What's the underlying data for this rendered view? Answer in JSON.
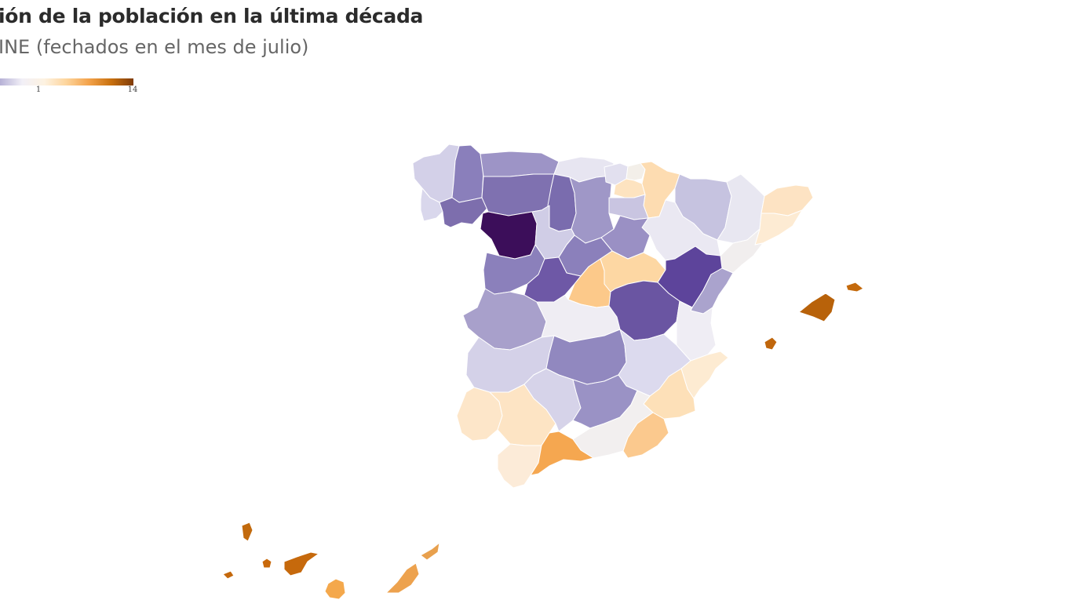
{
  "header": {
    "title": "ión de la población en la última década",
    "subtitle": "INE (fechados en el mes de julio)"
  },
  "legend": {
    "type": "choropleth-gradient",
    "ticks": [
      {
        "label": "1",
        "value": 1
      },
      {
        "label": "14",
        "value": 14
      }
    ],
    "colors": [
      "#b6b1d6",
      "#f2f0f7",
      "#fdf2e1",
      "#fdd49b",
      "#f3a24a",
      "#c8700e",
      "#7f3b08"
    ]
  },
  "regions": {
    "a-coruna": "#d3d0e8",
    "lugo": "#8a7fbb",
    "ourense": "#7d6ead",
    "pontevedra": "#d9d7ec",
    "asturias": "#9d94c6",
    "leon": "#7f71b0",
    "zamora": "#3c0e5a",
    "cantabria": "#e7e5f1",
    "palencia": "#7a6cae",
    "burgos": "#9f97c7",
    "bizkaia": "#e2e0ef",
    "gipuzkoa": "#f3efe9",
    "araba": "#fde3c0",
    "navarra": "#fddcb1",
    "la-rioja": "#c9c5e1",
    "huesca": "#c6c3e0",
    "lleida": "#e8e7f1",
    "girona": "#fde3c3",
    "barcelona": "#fdebd3",
    "tarragona": "#f1eeee",
    "zaragoza": "#eae8f2",
    "valladolid": "#d0cde6",
    "soria": "#9a90c4",
    "salamanca": "#8b80bb",
    "avila": "#6e58a6",
    "segovia": "#8b80bb",
    "madrid": "#fcc98a",
    "guadalajara": "#fdd7a3",
    "teruel": "#5d449b",
    "castellon": "#aaa3cd",
    "caceres": "#a8a0cb",
    "toledo": "#efedf3",
    "cuenca": "#6a55a2",
    "valencia": "#efedf4",
    "badajoz": "#d4d1e8",
    "ciudad-real": "#9188bf",
    "albacete": "#dcdaee",
    "alicante": "#fdebd2",
    "murcia": "#fde0b8",
    "huelva": "#fde6c9",
    "sevilla": "#fde4c4",
    "cordoba": "#d6d3e9",
    "jaen": "#9a92c5",
    "granada": "#f2efef",
    "almeria": "#fbc98e",
    "cadiz": "#fcebd8",
    "malaga": "#f5a750",
    "mallorca": "#b8620a",
    "menorca": "#c46a0c",
    "ibiza": "#c0660c",
    "tenerife": "#c6690c",
    "gran-canaria": "#f4a84c",
    "fuerteventura": "#eda24e",
    "lanzarote": "#e8a04d",
    "la-palma": "#c26a0d",
    "la-gomera": "#c8690b",
    "el-hierro": "#c4680c"
  }
}
